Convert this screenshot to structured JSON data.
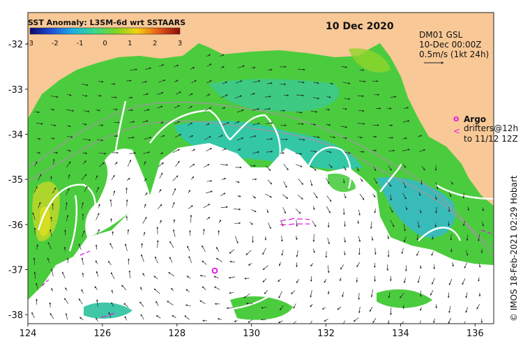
{
  "chart_data": {
    "type": "map",
    "title": "SST Anomaly: L3SM-6d wrt SSTAARS",
    "date": "10 Dec 2020",
    "xlim": [
      124,
      136.5
    ],
    "ylim": [
      -38.2,
      -31.3
    ],
    "x_ticks": [
      124,
      126,
      128,
      130,
      132,
      134,
      136
    ],
    "y_ticks": [
      -32,
      -33,
      -34,
      -35,
      -36,
      -37,
      -38
    ],
    "colorbar": {
      "ticks": [
        -3,
        -2,
        -1,
        0,
        1,
        2,
        3
      ],
      "colors": [
        "#08086b",
        "#1f4fd6",
        "#1ab0e6",
        "#39d98a",
        "#7ed321",
        "#f5d20f",
        "#e8581a",
        "#8b0a0a"
      ]
    },
    "current_info": {
      "line1": "DM01 GSL",
      "line2": "10-Dec 00:00Z",
      "line3": "0.5m/s (1kt 24h)"
    },
    "legend": {
      "argo_symbol": "o",
      "argo_label": "Argo",
      "drifter_symbol": "<",
      "drifter_line1": "drifters@12h",
      "drifter_line2": "to 11/12 12Z"
    },
    "credit": "© IMOS 18-Feb-2021 02:29 Hobart",
    "colors": {
      "land": "#f8c896",
      "sea_green": "#4bcc3e",
      "sea_cyan": "#29c4c8",
      "cloud": "#ffffff",
      "argo": "#e020e0"
    }
  }
}
